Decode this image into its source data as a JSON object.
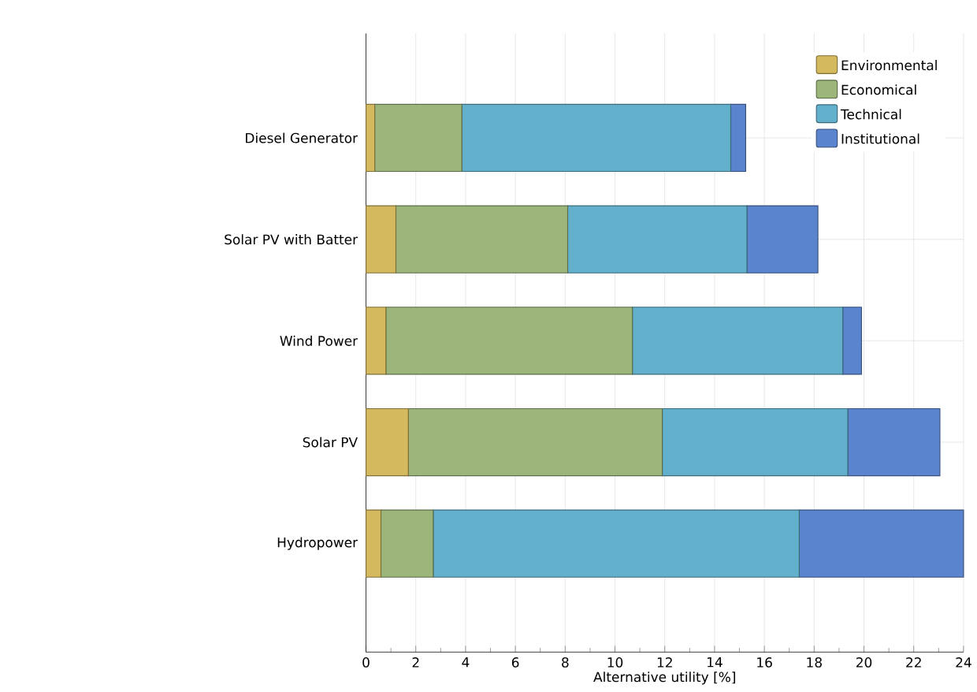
{
  "chart_data": {
    "type": "bar",
    "orientation": "horizontal",
    "stacked": true,
    "xlabel": "Alternative utility [%]",
    "categories": [
      "Diesel Generator",
      "Solar PV with Batter",
      "Wind Power",
      "Solar PV",
      "Hydropower"
    ],
    "series": [
      {
        "name": "Environmental",
        "color": "#d4b95e",
        "values": [
          0.35,
          1.2,
          0.8,
          1.7,
          0.6
        ]
      },
      {
        "name": "Economical",
        "color": "#9bb57a",
        "values": [
          3.5,
          6.9,
          9.9,
          10.2,
          2.1
        ]
      },
      {
        "name": "Technical",
        "color": "#63b0cc",
        "values": [
          10.8,
          7.2,
          8.45,
          7.45,
          14.7
        ]
      },
      {
        "name": "Institutional",
        "color": "#5b84cf",
        "values": [
          0.6,
          2.85,
          0.75,
          3.7,
          6.6
        ]
      }
    ],
    "xlim": [
      0,
      24
    ],
    "xticks": [
      0,
      2,
      4,
      6,
      8,
      10,
      12,
      14,
      16,
      18,
      20,
      22,
      24
    ],
    "grid": true,
    "legend": "top right"
  }
}
